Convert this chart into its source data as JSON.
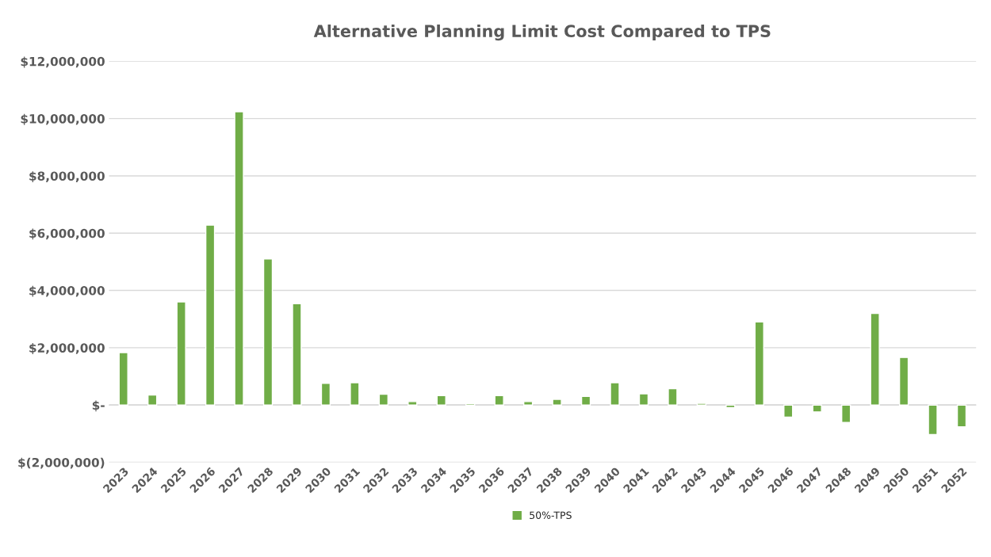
{
  "chart_data": {
    "type": "bar",
    "title": "Alternative Planning Limit Cost Compared to TPS",
    "categories": [
      "2023",
      "2024",
      "2025",
      "2026",
      "2027",
      "2028",
      "2029",
      "2030",
      "2031",
      "2032",
      "2033",
      "2034",
      "2035",
      "2036",
      "2037",
      "2038",
      "2039",
      "2040",
      "2041",
      "2042",
      "2043",
      "2044",
      "2045",
      "2046",
      "2047",
      "2048",
      "2049",
      "2050",
      "2051",
      "2052"
    ],
    "series": [
      {
        "name": "50%-TPS",
        "color": "#70ad47",
        "values": [
          1830000,
          350000,
          3600000,
          6280000,
          10240000,
          5100000,
          3540000,
          760000,
          780000,
          380000,
          120000,
          330000,
          50000,
          330000,
          120000,
          200000,
          300000,
          780000,
          390000,
          570000,
          60000,
          -90000,
          2900000,
          -420000,
          -240000,
          -610000,
          3200000,
          1660000,
          -1030000,
          -760000
        ]
      }
    ],
    "ylim": [
      -2000000,
      12000000
    ],
    "yticks": [
      {
        "value": -2000000,
        "label": "$(2,000,000)"
      },
      {
        "value": 0,
        "label": "$-"
      },
      {
        "value": 2000000,
        "label": "$2,000,000"
      },
      {
        "value": 4000000,
        "label": "$4,000,000"
      },
      {
        "value": 6000000,
        "label": "$6,000,000"
      },
      {
        "value": 8000000,
        "label": "$8,000,000"
      },
      {
        "value": 10000000,
        "label": "$10,000,000"
      },
      {
        "value": 12000000,
        "label": "$12,000,000"
      }
    ],
    "grid": "y",
    "legend": "bottom"
  }
}
